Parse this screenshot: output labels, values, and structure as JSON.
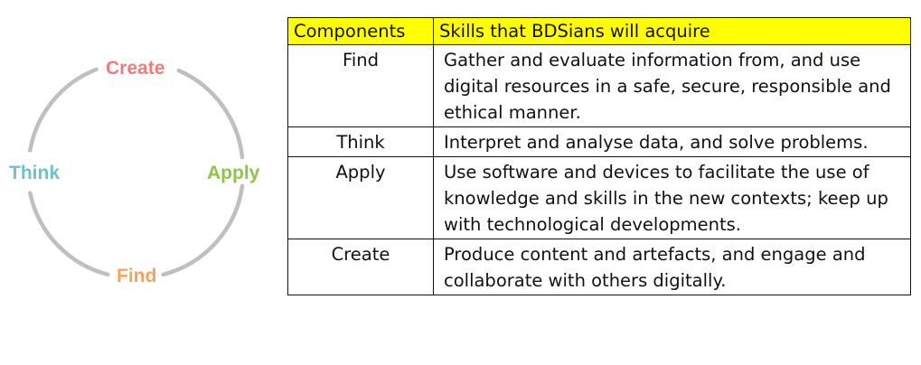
{
  "cycle": {
    "track_color": "#bfbfbf",
    "labels": {
      "create": {
        "text": "Create",
        "color": "#ef7b7b"
      },
      "think": {
        "text": "Think",
        "color": "#6cc3cc"
      },
      "apply": {
        "text": "Apply",
        "color": "#8dc449"
      },
      "find": {
        "text": "Find",
        "color": "#f5a25a"
      }
    }
  },
  "table": {
    "header_bg": "#ffff00",
    "headers": {
      "components": "Components",
      "skills": "Skills that BDSians will acquire"
    },
    "rows": [
      {
        "component": "Find",
        "skill": "Gather and evaluate information from, and use digital resources in a safe, secure, responsible and ethical manner."
      },
      {
        "component": "Think",
        "skill": "Interpret and analyse data, and solve problems."
      },
      {
        "component": "Apply",
        "skill": "Use software and devices to facilitate the use of knowledge and skills in the new contexts; keep up with technological developments."
      },
      {
        "component": "Create",
        "skill": "Produce content and artefacts, and engage and collaborate with others digitally."
      }
    ]
  }
}
